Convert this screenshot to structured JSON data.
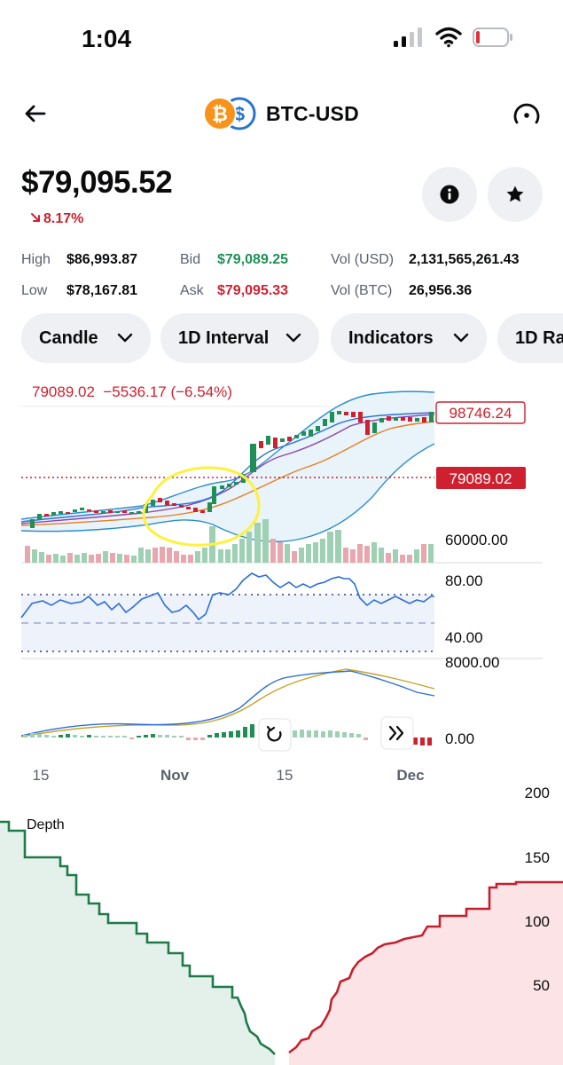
{
  "status_bar": {
    "time": "1:04"
  },
  "header": {
    "pair": "BTC-USD"
  },
  "price": {
    "current": "$79,095.52",
    "change": "8.17%"
  },
  "stats": {
    "high_label": "High",
    "high_value": "$86,993.87",
    "low_label": "Low",
    "low_value": "$78,167.81",
    "bid_label": "Bid",
    "bid_value": "$79,089.25",
    "ask_label": "Ask",
    "ask_value": "$79,095.33",
    "vol_usd_label": "Vol (USD)",
    "vol_usd_value": "2,131,565,261.43",
    "vol_btc_label": "Vol (BTC)",
    "vol_btc_value": "26,956.36"
  },
  "chips": [
    "Candle",
    "1D Interval",
    "Indicators",
    "1D Ra"
  ],
  "chart": {
    "legend_text": "79089.02  −5536.17 (−6.54%)",
    "price_tag_high": "98746.24",
    "price_tag_current": "79089.02",
    "price_axis_low": "60000.00",
    "rsi_axis_top": "80.00",
    "rsi_axis_bottom": "40.00",
    "macd_axis_top": "8000.00",
    "macd_axis_bottom": "0.00",
    "x_labels": [
      "15",
      "Nov",
      "15",
      "Dec"
    ]
  },
  "depth": {
    "title": "Depth",
    "y_labels": [
      "200",
      "150",
      "100",
      "50"
    ]
  },
  "colors": {
    "up": "#1f8f55",
    "down": "#cf202f",
    "accent": "#0052ff",
    "chip_bg": "#eef0f3",
    "bid_fill": "#e3f1ea",
    "ask_fill": "#fbe3e6",
    "highlight_circle": "#fff13a"
  },
  "icons": {
    "back": "arrow-left-icon",
    "info": "info-icon",
    "favorite": "star-icon",
    "gauge": "gauge-icon",
    "reset": "rotate-ccw-icon",
    "scroll_end": "chevrons-right-icon"
  }
}
